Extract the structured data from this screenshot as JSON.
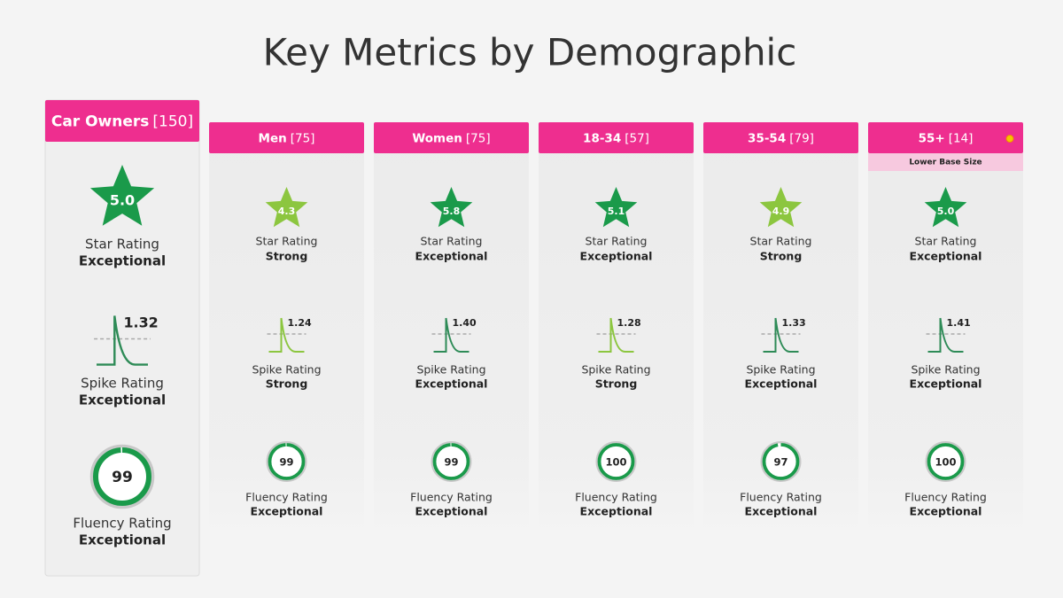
{
  "title": "Key Metrics by Demographic",
  "columns": [
    {
      "name": "Car Owners",
      "base": "[150]",
      "star": {
        "value": "5.0",
        "label": "Star Rating",
        "rating": "Exceptional",
        "color": "#1a9a4a"
      },
      "spike": {
        "value": "1.32",
        "label": "Spike Rating",
        "rating": "Exceptional",
        "color": "#2e8b57"
      },
      "fluency": {
        "value": 99,
        "label": "Fluency Rating",
        "rating": "Exceptional",
        "color": "#1a9a4a"
      }
    },
    {
      "name": "Men",
      "base": "[75]",
      "star": {
        "value": "4.3",
        "label": "Star Rating",
        "rating": "Strong",
        "color": "#8cc63f"
      },
      "spike": {
        "value": "1.24",
        "label": "Spike Rating",
        "rating": "Strong",
        "color": "#8cc63f"
      },
      "fluency": {
        "value": 99,
        "label": "Fluency Rating",
        "rating": "Exceptional",
        "color": "#1a9a4a"
      }
    },
    {
      "name": "Women",
      "base": "[75]",
      "star": {
        "value": "5.8",
        "label": "Star Rating",
        "rating": "Exceptional",
        "color": "#1a9a4a"
      },
      "spike": {
        "value": "1.40",
        "label": "Spike Rating",
        "rating": "Exceptional",
        "color": "#2e8b57"
      },
      "fluency": {
        "value": 99,
        "label": "Fluency Rating",
        "rating": "Exceptional",
        "color": "#1a9a4a"
      }
    },
    {
      "name": "18-34",
      "base": "[57]",
      "star": {
        "value": "5.1",
        "label": "Star Rating",
        "rating": "Exceptional",
        "color": "#1a9a4a"
      },
      "spike": {
        "value": "1.28",
        "label": "Spike Rating",
        "rating": "Strong",
        "color": "#8cc63f"
      },
      "fluency": {
        "value": 100,
        "label": "Fluency Rating",
        "rating": "Exceptional",
        "color": "#1a9a4a"
      }
    },
    {
      "name": "35-54",
      "base": "[79]",
      "star": {
        "value": "4.9",
        "label": "Star Rating",
        "rating": "Strong",
        "color": "#8cc63f"
      },
      "spike": {
        "value": "1.33",
        "label": "Spike Rating",
        "rating": "Exceptional",
        "color": "#2e8b57"
      },
      "fluency": {
        "value": 97,
        "label": "Fluency Rating",
        "rating": "Exceptional",
        "color": "#1a9a4a"
      }
    },
    {
      "name": "55+",
      "base": "[14]",
      "note": "Lower Base Size",
      "star": {
        "value": "5.0",
        "label": "Star Rating",
        "rating": "Exceptional",
        "color": "#1a9a4a"
      },
      "spike": {
        "value": "1.41",
        "label": "Spike Rating",
        "rating": "Exceptional",
        "color": "#2e8b57"
      },
      "fluency": {
        "value": 100,
        "label": "Fluency Rating",
        "rating": "Exceptional",
        "color": "#1a9a4a"
      }
    }
  ]
}
